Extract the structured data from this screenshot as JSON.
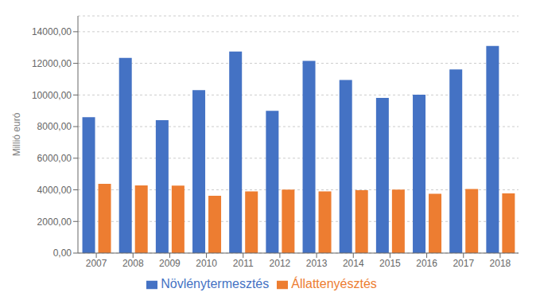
{
  "chart_data": {
    "type": "bar",
    "categories": [
      "2007",
      "2008",
      "2009",
      "2010",
      "2011",
      "2012",
      "2013",
      "2014",
      "2015",
      "2016",
      "2017",
      "2018"
    ],
    "series": [
      {
        "name": "Növlénytermesztés",
        "color": "#4472C4",
        "values": [
          8600,
          12350,
          8400,
          10300,
          12750,
          9000,
          12150,
          10950,
          9820,
          10020,
          11620,
          13100
        ]
      },
      {
        "name": "Állattenyésztés",
        "color": "#ED7D31",
        "values": [
          4380,
          4280,
          4260,
          3620,
          3900,
          4020,
          3900,
          3980,
          4010,
          3750,
          4050,
          3780
        ]
      }
    ],
    "ylabel": "Millió euró",
    "ylim": [
      0,
      15000
    ],
    "yticks": [
      {
        "value": 0,
        "label": "0,00"
      },
      {
        "value": 2000,
        "label": "2000,00"
      },
      {
        "value": 4000,
        "label": "4000,00"
      },
      {
        "value": 6000,
        "label": "6000,00"
      },
      {
        "value": 8000,
        "label": "8000,00"
      },
      {
        "value": 10000,
        "label": "10000,00"
      },
      {
        "value": 12000,
        "label": "12000,00"
      },
      {
        "value": 14000,
        "label": "14000,00"
      }
    ],
    "grid": true,
    "legend": "bottom"
  }
}
